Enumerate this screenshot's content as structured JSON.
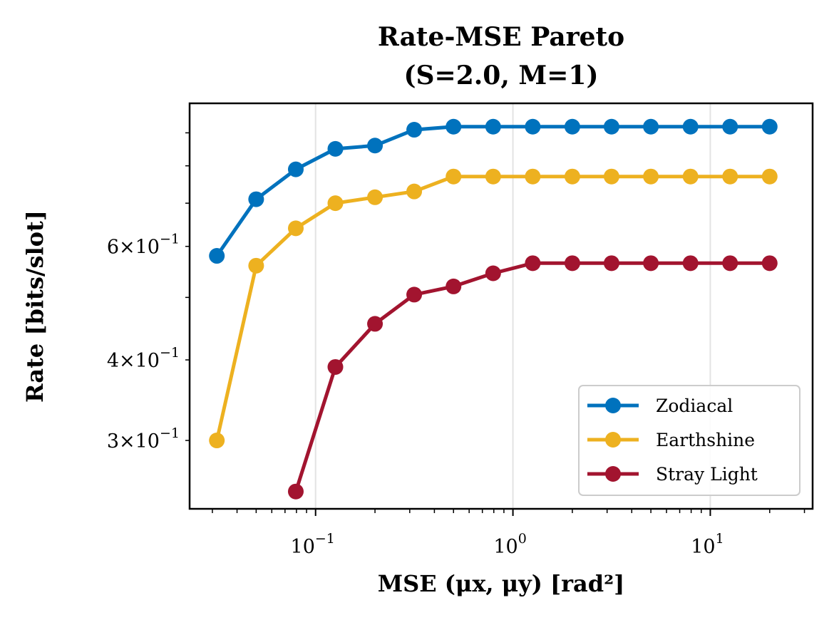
{
  "chart_data": {
    "type": "line",
    "title": [
      "Rate-MSE Pareto",
      "(S=2.0, M=1)"
    ],
    "xlabel": "MSE (μx, μy) [rad²]",
    "ylabel": "Rate [bits/slot]",
    "xscale": "log",
    "yscale": "log",
    "xlim": [
      0.023,
      33
    ],
    "ylim": [
      0.235,
      1.0
    ],
    "grid": "vertical major only",
    "legend_position": "lower right",
    "x_tick_labels": [
      {
        "base": "10",
        "exp": "−1",
        "value": 0.1
      },
      {
        "base": "10",
        "exp": "0",
        "value": 1
      },
      {
        "base": "10",
        "exp": "1",
        "value": 10
      }
    ],
    "y_tick_labels": [
      {
        "mant": "3",
        "base": "10",
        "exp": "−1",
        "value": 0.3
      },
      {
        "mant": "4",
        "base": "10",
        "exp": "−1",
        "value": 0.4
      },
      {
        "mant": "6",
        "base": "10",
        "exp": "−1",
        "value": 0.6
      }
    ],
    "series": [
      {
        "name": "Zodiacal",
        "color": "#0072bd",
        "x": [
          0.0316,
          0.05,
          0.0794,
          0.126,
          0.2,
          0.316,
          0.5,
          0.794,
          1.26,
          2.0,
          3.16,
          5.0,
          7.94,
          12.6,
          20
        ],
        "y": [
          0.58,
          0.71,
          0.79,
          0.85,
          0.86,
          0.91,
          0.92,
          0.92,
          0.92,
          0.92,
          0.92,
          0.92,
          0.92,
          0.92,
          0.92
        ]
      },
      {
        "name": "Earthshine",
        "color": "#edb120",
        "x": [
          0.0316,
          0.05,
          0.0794,
          0.126,
          0.2,
          0.316,
          0.5,
          0.794,
          1.26,
          2.0,
          3.16,
          5.0,
          7.94,
          12.6,
          20
        ],
        "y": [
          0.3,
          0.56,
          0.64,
          0.7,
          0.715,
          0.73,
          0.77,
          0.77,
          0.77,
          0.77,
          0.77,
          0.77,
          0.77,
          0.77,
          0.77
        ]
      },
      {
        "name": "Stray Light",
        "color": "#a2142f",
        "x": [
          0.0794,
          0.126,
          0.2,
          0.316,
          0.5,
          0.794,
          1.26,
          2.0,
          3.16,
          5.0,
          7.94,
          12.6,
          20
        ],
        "y": [
          0.25,
          0.39,
          0.455,
          0.505,
          0.52,
          0.545,
          0.565,
          0.565,
          0.565,
          0.565,
          0.565,
          0.565,
          0.565
        ]
      }
    ]
  }
}
